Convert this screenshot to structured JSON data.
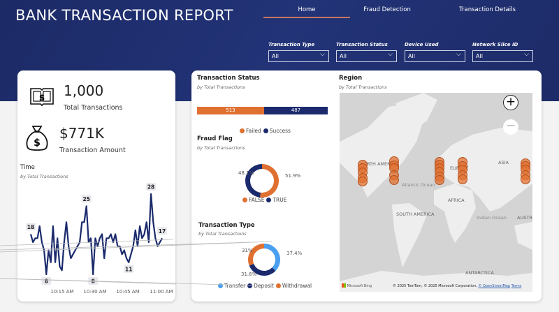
{
  "header": {
    "title": "BANK TRANSACTION REPORT",
    "nav": [
      {
        "label": "Home",
        "active": true
      },
      {
        "label": "Fraud Detection"
      },
      {
        "label": "Transaction Details"
      }
    ]
  },
  "filters": [
    {
      "label": "Transaction Type",
      "value": "All"
    },
    {
      "label": "Transaction Status",
      "value": "All"
    },
    {
      "label": "Device Used",
      "value": "All"
    },
    {
      "label": "Network Slice ID",
      "value": "All"
    }
  ],
  "kpis": {
    "transactions": {
      "value": "1,000",
      "label": "Total Transactions",
      "icon": "ledger-icon"
    },
    "amount": {
      "value": "$771K",
      "label": "Transaction Amount",
      "icon": "money-bag-icon"
    }
  },
  "colors": {
    "navy": "#1a2a6c",
    "orange": "#e07030",
    "light_blue": "#4a9ff0",
    "header": "#1f2d6b"
  },
  "chart_data": [
    {
      "type": "line",
      "title": "Time",
      "subtitle": "by Total Transactions",
      "x_ticks": [
        "10:15 AM",
        "10:30 AM",
        "10:45 AM",
        "11:00 AM"
      ],
      "x": [
        "10:01",
        "10:02",
        "10:03",
        "10:04",
        "10:05",
        "10:06",
        "10:07",
        "10:08",
        "10:09",
        "10:10",
        "10:11",
        "10:12",
        "10:13",
        "10:14",
        "10:15",
        "10:16",
        "10:17",
        "10:18",
        "10:19",
        "10:20",
        "10:21",
        "10:22",
        "10:23",
        "10:24",
        "10:25",
        "10:26",
        "10:27",
        "10:28",
        "10:29",
        "10:30",
        "10:31",
        "10:32",
        "10:33",
        "10:34",
        "10:35",
        "10:36",
        "10:37",
        "10:38",
        "10:39",
        "10:40",
        "10:41",
        "10:42",
        "10:43",
        "10:44",
        "10:45",
        "10:46",
        "10:47",
        "10:48",
        "10:49",
        "10:50",
        "10:51",
        "10:52",
        "10:53",
        "10:54",
        "10:55",
        "10:56",
        "10:57",
        "10:58",
        "10:59",
        "11:00"
      ],
      "values": [
        18,
        16,
        17,
        17,
        20,
        16,
        14,
        8,
        14,
        11,
        20,
        11,
        17,
        10,
        9,
        16,
        21,
        15,
        12,
        13,
        14,
        15,
        16,
        21,
        21,
        25,
        16,
        17,
        8,
        17,
        15,
        17,
        18,
        12,
        17,
        17,
        18,
        16,
        18,
        15,
        15,
        13,
        14,
        12,
        11,
        13,
        15,
        19,
        15,
        20,
        17,
        18,
        21,
        16,
        28,
        21,
        17,
        15,
        16,
        17
      ],
      "data_labels": [
        {
          "index": 0,
          "text": "18"
        },
        {
          "index": 7,
          "text": "8"
        },
        {
          "index": 25,
          "text": "25"
        },
        {
          "index": 28,
          "text": "8"
        },
        {
          "index": 44,
          "text": "11"
        },
        {
          "index": 54,
          "text": "28"
        },
        {
          "index": 59,
          "text": "17"
        }
      ]
    },
    {
      "type": "stacked-bar",
      "title": "Transaction Status",
      "subtitle": "by Total Transactions",
      "series": [
        {
          "name": "Failed",
          "value": 513,
          "color": "#e07030"
        },
        {
          "name": "Success",
          "value": 487,
          "color": "#1a2a6c"
        }
      ]
    },
    {
      "type": "donut",
      "title": "Fraud Flag",
      "subtitle": "by Total Transactions",
      "slices": [
        {
          "name": "FALSE",
          "value": 51.9,
          "label": "51.9%",
          "color": "#e07030"
        },
        {
          "name": "TRUE",
          "value": 48.1,
          "label": "48.1%",
          "color": "#1a2a6c"
        }
      ]
    },
    {
      "type": "donut",
      "title": "Transaction Type",
      "subtitle": "by Total Transactions",
      "slices": [
        {
          "name": "Transfer",
          "value": 37.4,
          "label": "37.4%",
          "color": "#4a9ff0"
        },
        {
          "name": "Deposit",
          "value": 31.6,
          "label": "31.6%",
          "color": "#1a2a6c"
        },
        {
          "name": "Withdrawal",
          "value": 31,
          "label": "31%",
          "color": "#e07030"
        }
      ]
    }
  ],
  "map": {
    "title": "Region",
    "subtitle": "by Total Transactions",
    "labels": [
      "NORTH AMERICA",
      "EUROPE",
      "ASIA",
      "Atlantic Ocean",
      "AFRICA",
      "SOUTH AMERICA",
      "Indian Ocean",
      "AUSTRALIA",
      "ANTARCTICA"
    ],
    "attribution": "© 2025 TomTom, © 2025 Microsoft Corporation,",
    "osm": "© OpenStreetMap",
    "terms": "Terms",
    "logo": "Microsoft Bing"
  }
}
